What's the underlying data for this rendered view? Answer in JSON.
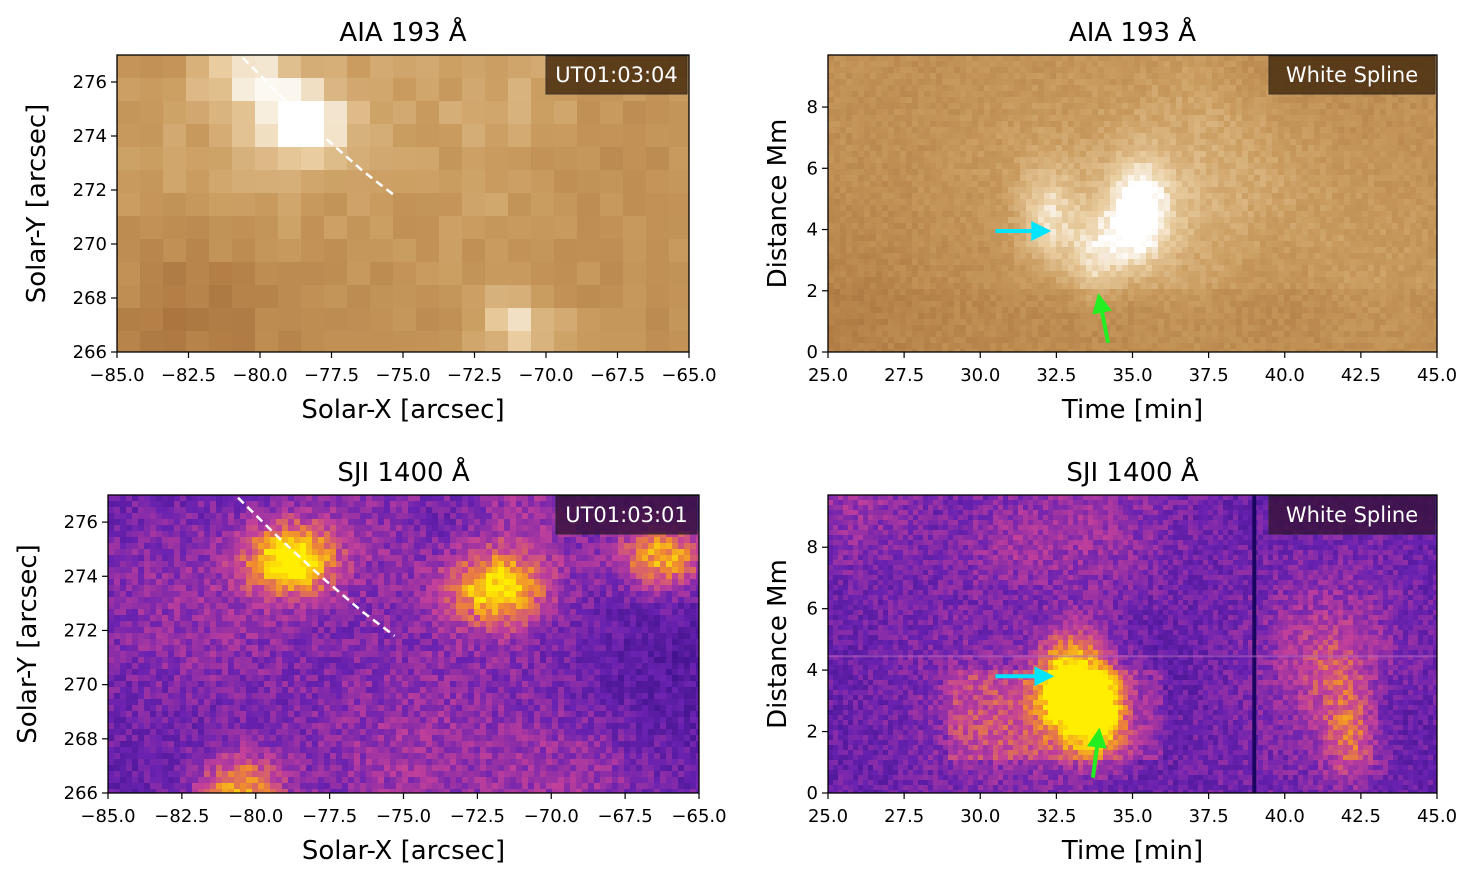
{
  "colors": {
    "aia_dark": "#a56f3a",
    "aia_mid": "#c89a5c",
    "aia_light": "#e8c99a",
    "sji_dark": "#3a0a8c",
    "sji_mid": "#7a2ab8",
    "sji_bright": "#ffe000",
    "arrow_cyan": "#00e5ff",
    "arrow_green": "#22ee22",
    "spline": "#ffffff"
  },
  "chart_data": [
    {
      "id": "aia_map",
      "type": "heatmap",
      "title": "AIA 193 Å",
      "xlabel": "Solar-X [arcsec]",
      "ylabel": "Solar-Y [arcsec]",
      "xlim": [
        -85,
        -65
      ],
      "ylim": [
        266,
        277
      ],
      "xticks": [
        "−85.0",
        "−82.5",
        "−80.0",
        "−77.5",
        "−75.0",
        "−72.5",
        "−70.0",
        "−67.5",
        "−65.0"
      ],
      "xtick_values": [
        -85,
        -82.5,
        -80,
        -77.5,
        -75,
        -72.5,
        -70,
        -67.5,
        -65
      ],
      "yticks": [
        "266",
        "268",
        "270",
        "272",
        "274",
        "276"
      ],
      "ytick_values": [
        266,
        268,
        270,
        272,
        274,
        276
      ],
      "annotation": "UT01:03:04",
      "colormap": "sdoaia193",
      "spline": {
        "x": [
          -80.6,
          -79.2,
          -77.8,
          -76.4,
          -75.3
        ],
        "y": [
          276.9,
          275.4,
          274.0,
          272.7,
          271.8
        ]
      },
      "bright_features": [
        {
          "x": -78.5,
          "y": 274.5,
          "intensity": 1.0
        },
        {
          "x": -80.5,
          "y": 276.3,
          "intensity": 0.7
        },
        {
          "x": -71.0,
          "y": 267.0,
          "intensity": 0.75
        }
      ]
    },
    {
      "id": "aia_td",
      "type": "heatmap",
      "title": "AIA 193 Å",
      "xlabel": "Time [min]",
      "ylabel": "Distance Mm",
      "xlim": [
        25,
        45
      ],
      "ylim": [
        0,
        9.7
      ],
      "xticks": [
        "25.0",
        "27.5",
        "30.0",
        "32.5",
        "35.0",
        "37.5",
        "40.0",
        "42.5",
        "45.0"
      ],
      "xtick_values": [
        25,
        27.5,
        30,
        32.5,
        35,
        37.5,
        40,
        42.5,
        45
      ],
      "yticks": [
        "0",
        "2",
        "4",
        "6",
        "8"
      ],
      "ytick_values": [
        0,
        2,
        4,
        6,
        8
      ],
      "annotation": "White Spline",
      "colormap": "sdoaia193",
      "arrows": [
        {
          "color": "cyan",
          "from": [
            30.5,
            3.95
          ],
          "to": [
            32.2,
            3.95
          ]
        },
        {
          "color": "green",
          "from": [
            34.2,
            0.3
          ],
          "to": [
            33.9,
            1.8
          ]
        }
      ],
      "bright_features": [
        {
          "x": 35.2,
          "y": 4.5,
          "intensity": 1.0
        },
        {
          "x": 32.2,
          "y": 4.4,
          "intensity": 0.7
        },
        {
          "x": 33.8,
          "y": 2.8,
          "intensity": 0.75
        }
      ]
    },
    {
      "id": "sji_map",
      "type": "heatmap",
      "title": "SJI 1400 Å",
      "xlabel": "Solar-X [arcsec]",
      "ylabel": "Solar-Y [arcsec]",
      "xlim": [
        -85,
        -65
      ],
      "ylim": [
        266,
        277
      ],
      "xticks": [
        "−85.0",
        "−82.5",
        "−80.0",
        "−77.5",
        "−75.0",
        "−72.5",
        "−70.0",
        "−67.5",
        "−65.0"
      ],
      "xtick_values": [
        -85,
        -82.5,
        -80,
        -77.5,
        -75,
        -72.5,
        -70,
        -67.5,
        -65
      ],
      "yticks": [
        "266",
        "268",
        "270",
        "272",
        "274",
        "276"
      ],
      "ytick_values": [
        266,
        268,
        270,
        272,
        274,
        276
      ],
      "annotation": "UT01:03:01",
      "colormap": "irissji1400",
      "spline": {
        "x": [
          -80.6,
          -79.2,
          -77.8,
          -76.4,
          -75.3
        ],
        "y": [
          276.9,
          275.4,
          274.0,
          272.7,
          271.8
        ]
      },
      "bright_features": [
        {
          "x": -78.8,
          "y": 274.6,
          "intensity": 1.0
        },
        {
          "x": -66.2,
          "y": 274.7,
          "intensity": 0.8
        },
        {
          "x": -71.8,
          "y": 273.5,
          "intensity": 0.75
        },
        {
          "x": -80.5,
          "y": 266.2,
          "intensity": 0.7
        }
      ]
    },
    {
      "id": "sji_td",
      "type": "heatmap",
      "title": "SJI 1400 Å",
      "xlabel": "Time [min]",
      "ylabel": "Distance Mm",
      "xlim": [
        25,
        45
      ],
      "ylim": [
        0,
        9.7
      ],
      "xticks": [
        "25.0",
        "27.5",
        "30.0",
        "32.5",
        "35.0",
        "37.5",
        "40.0",
        "42.5",
        "45.0"
      ],
      "xtick_values": [
        25,
        27.5,
        30,
        32.5,
        35,
        37.5,
        40,
        42.5,
        45
      ],
      "yticks": [
        "0",
        "2",
        "4",
        "6",
        "8"
      ],
      "ytick_values": [
        0,
        2,
        4,
        6,
        8
      ],
      "annotation": "White Spline",
      "colormap": "irissji1400",
      "data_gap_time": 39.0,
      "arrows": [
        {
          "color": "cyan",
          "from": [
            30.5,
            3.8
          ],
          "to": [
            32.3,
            3.8
          ]
        },
        {
          "color": "green",
          "from": [
            33.7,
            0.5
          ],
          "to": [
            33.9,
            2.0
          ]
        }
      ],
      "bright_features": [
        {
          "x": 33.8,
          "y": 2.8,
          "intensity": 1.0
        },
        {
          "x": 32.8,
          "y": 3.6,
          "intensity": 0.85
        },
        {
          "x": 42.2,
          "y": 2.0,
          "intensity": 0.6
        }
      ]
    }
  ]
}
